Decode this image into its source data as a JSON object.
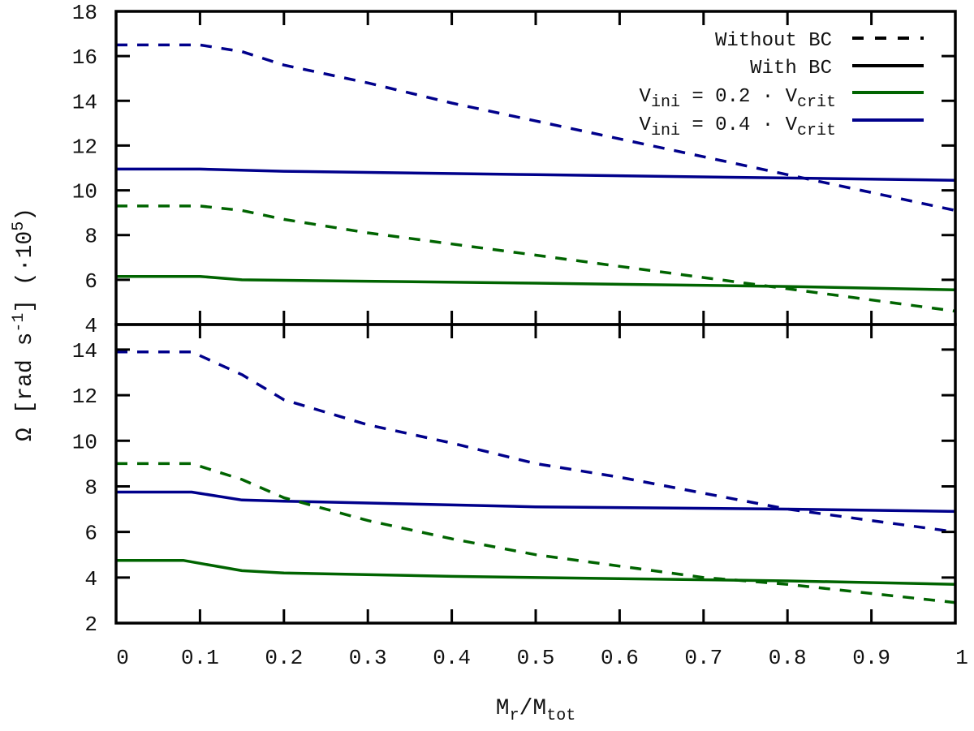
{
  "chart_data": [
    {
      "type": "line",
      "panel": "top",
      "xlim": [
        0,
        1
      ],
      "ylim": [
        4,
        18
      ],
      "yticks": [
        4,
        6,
        8,
        10,
        12,
        14,
        16,
        18
      ],
      "xticks": [
        0,
        0.1,
        0.2,
        0.3,
        0.4,
        0.5,
        0.6,
        0.7,
        0.8,
        0.9,
        1
      ],
      "grid": false,
      "legend_position": "top-right",
      "legend": [
        {
          "label": "Without BC",
          "style": "dashed",
          "color": "#000000"
        },
        {
          "label": "With BC",
          "style": "solid",
          "color": "#000000"
        },
        {
          "label_main": "V",
          "label_sub": "ini",
          "label_mid": " = 0.2 · V",
          "label_sub2": "crit",
          "style": "solid",
          "color": "#006400"
        },
        {
          "label_main": "V",
          "label_sub": "ini",
          "label_mid": " = 0.4 · V",
          "label_sub2": "crit",
          "style": "solid",
          "color": "#00008b"
        }
      ],
      "series": [
        {
          "color": "#00008b",
          "style": "dashed",
          "x": [
            0,
            0.1,
            0.15,
            0.2,
            0.3,
            0.4,
            0.5,
            0.6,
            0.7,
            0.8,
            0.9,
            1
          ],
          "y": [
            16.5,
            16.5,
            16.2,
            15.6,
            14.8,
            13.9,
            13.1,
            12.3,
            11.5,
            10.7,
            9.9,
            9.1
          ]
        },
        {
          "color": "#00008b",
          "style": "solid",
          "x": [
            0,
            0.1,
            0.2,
            0.5,
            0.8,
            1
          ],
          "y": [
            10.95,
            10.95,
            10.85,
            10.7,
            10.55,
            10.45
          ]
        },
        {
          "color": "#006400",
          "style": "dashed",
          "x": [
            0,
            0.1,
            0.15,
            0.2,
            0.3,
            0.4,
            0.5,
            0.6,
            0.7,
            0.8,
            0.9,
            1
          ],
          "y": [
            9.3,
            9.3,
            9.1,
            8.7,
            8.1,
            7.6,
            7.1,
            6.6,
            6.1,
            5.6,
            5.1,
            4.6
          ]
        },
        {
          "color": "#006400",
          "style": "solid",
          "x": [
            0,
            0.1,
            0.15,
            0.5,
            0.8,
            1
          ],
          "y": [
            6.15,
            6.15,
            6.0,
            5.85,
            5.7,
            5.55
          ]
        }
      ]
    },
    {
      "type": "line",
      "panel": "bottom",
      "xlim": [
        0,
        1
      ],
      "ylim": [
        2,
        15.1
      ],
      "yticks": [
        2,
        4,
        6,
        8,
        10,
        12,
        14
      ],
      "xticks": [
        0,
        0.1,
        0.2,
        0.3,
        0.4,
        0.5,
        0.6,
        0.7,
        0.8,
        0.9,
        1
      ],
      "xtick_labels": [
        "0",
        "0.1",
        "0.2",
        "0.3",
        "0.4",
        "0.5",
        "0.6",
        "0.7",
        "0.8",
        "0.9",
        "1"
      ],
      "grid": false,
      "series": [
        {
          "color": "#00008b",
          "style": "dashed",
          "x": [
            0,
            0.09,
            0.15,
            0.2,
            0.3,
            0.4,
            0.5,
            0.6,
            0.7,
            0.8,
            0.9,
            1
          ],
          "y": [
            13.9,
            13.9,
            12.9,
            11.8,
            10.7,
            9.9,
            9.0,
            8.4,
            7.7,
            7.0,
            6.5,
            6.0
          ]
        },
        {
          "color": "#00008b",
          "style": "solid",
          "x": [
            0,
            0.09,
            0.15,
            0.2,
            0.5,
            0.8,
            1
          ],
          "y": [
            7.75,
            7.75,
            7.4,
            7.35,
            7.1,
            7.0,
            6.9
          ]
        },
        {
          "color": "#006400",
          "style": "dashed",
          "x": [
            0,
            0.09,
            0.15,
            0.2,
            0.3,
            0.4,
            0.5,
            0.6,
            0.7,
            0.8,
            0.9,
            1
          ],
          "y": [
            9.0,
            9.0,
            8.3,
            7.5,
            6.5,
            5.7,
            5.0,
            4.5,
            4.0,
            3.7,
            3.3,
            2.9
          ]
        },
        {
          "color": "#006400",
          "style": "solid",
          "x": [
            0,
            0.08,
            0.15,
            0.2,
            0.4,
            0.6,
            0.8,
            1
          ],
          "y": [
            4.75,
            4.75,
            4.3,
            4.2,
            4.05,
            3.95,
            3.85,
            3.7
          ]
        }
      ]
    }
  ],
  "axes": {
    "ylabel_main": "Ω [rad s",
    "ylabel_sup": "-1",
    "ylabel_mid": "] (·10",
    "ylabel_sup2": "5",
    "ylabel_end": ")",
    "xlabel_main": "M",
    "xlabel_sub": "r",
    "xlabel_mid": "/M",
    "xlabel_sub2": "tot"
  }
}
